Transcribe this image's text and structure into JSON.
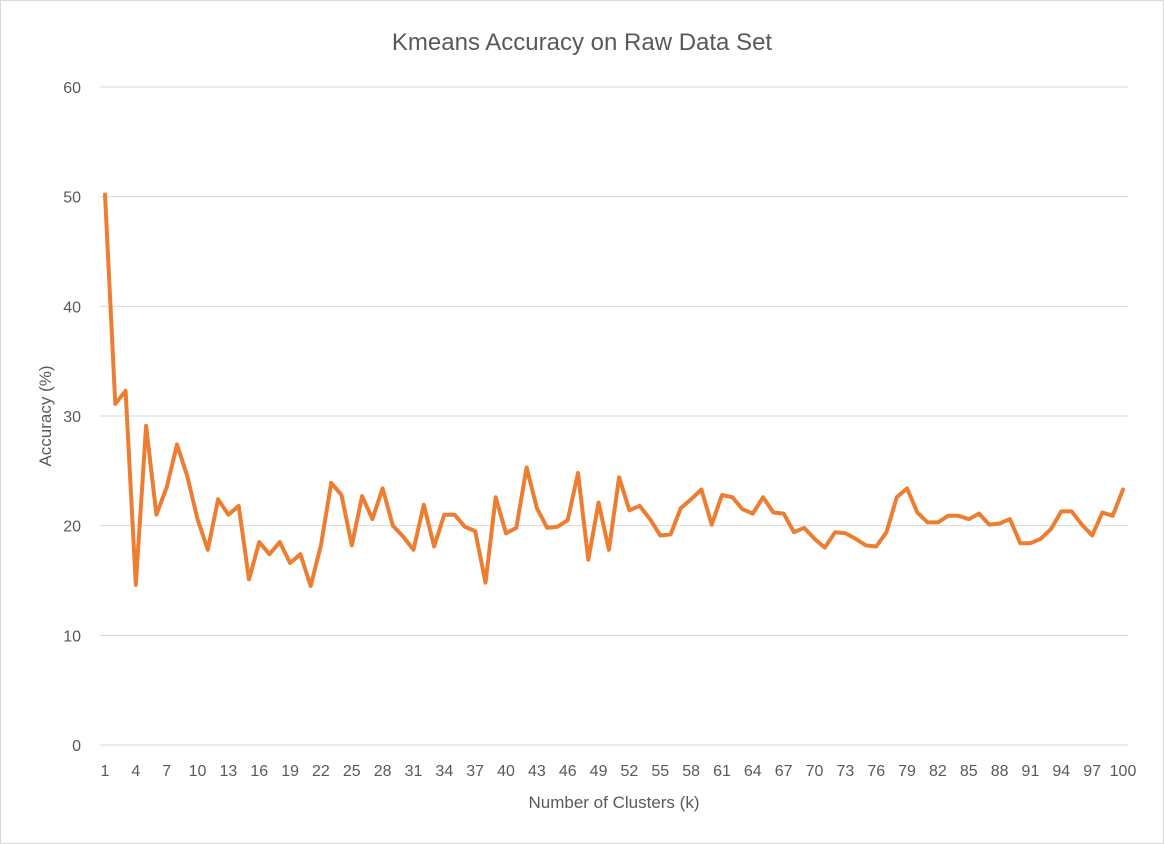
{
  "chart_data": {
    "type": "line",
    "title": "Kmeans Accuracy on Raw Data Set",
    "xlabel": "Number of Clusters (k)",
    "ylabel": "Accuracy (%)",
    "ylim": [
      0,
      60
    ],
    "yticks": [
      0,
      10,
      20,
      30,
      40,
      50,
      60
    ],
    "xticks": [
      1,
      4,
      7,
      10,
      13,
      16,
      19,
      22,
      25,
      28,
      31,
      34,
      37,
      40,
      43,
      46,
      49,
      52,
      55,
      58,
      61,
      64,
      67,
      70,
      73,
      76,
      79,
      82,
      85,
      88,
      91,
      94,
      97,
      100
    ],
    "grid": true,
    "legend": "none",
    "color": "#ed7d31",
    "x": [
      1,
      2,
      3,
      4,
      5,
      6,
      7,
      8,
      9,
      10,
      11,
      12,
      13,
      14,
      15,
      16,
      17,
      18,
      19,
      20,
      21,
      22,
      23,
      24,
      25,
      26,
      27,
      28,
      29,
      30,
      31,
      32,
      33,
      34,
      35,
      36,
      37,
      38,
      39,
      40,
      41,
      42,
      43,
      44,
      45,
      46,
      47,
      48,
      49,
      50,
      51,
      52,
      53,
      54,
      55,
      56,
      57,
      58,
      59,
      60,
      61,
      62,
      63,
      64,
      65,
      66,
      67,
      68,
      69,
      70,
      71,
      72,
      73,
      74,
      75,
      76,
      77,
      78,
      79,
      80,
      81,
      82,
      83,
      84,
      85,
      86,
      87,
      88,
      89,
      90,
      91,
      92,
      93,
      94,
      95,
      96,
      97,
      98,
      99,
      100
    ],
    "values": [
      50.2,
      31.1,
      32.3,
      14.6,
      29.1,
      21.0,
      23.5,
      27.4,
      24.5,
      20.6,
      17.8,
      22.4,
      21.0,
      21.8,
      15.1,
      18.5,
      17.4,
      18.5,
      16.6,
      17.4,
      14.5,
      18.2,
      23.9,
      22.8,
      18.2,
      22.7,
      20.6,
      23.4,
      20.0,
      19.0,
      17.8,
      21.9,
      18.1,
      21.0,
      21.0,
      19.9,
      19.5,
      14.8,
      22.6,
      19.3,
      19.8,
      25.3,
      21.6,
      19.8,
      19.9,
      20.5,
      24.8,
      16.9,
      22.1,
      17.8,
      24.4,
      21.4,
      21.8,
      20.6,
      19.1,
      19.2,
      21.6,
      22.4,
      23.3,
      20.1,
      22.8,
      22.6,
      21.5,
      21.1,
      22.6,
      21.2,
      21.1,
      19.4,
      19.8,
      18.8,
      18.0,
      19.4,
      19.3,
      18.8,
      18.2,
      18.1,
      19.4,
      22.6,
      23.4,
      21.2,
      20.3,
      20.3,
      20.9,
      20.9,
      20.6,
      21.1,
      20.1,
      20.2,
      20.6,
      18.4,
      18.4,
      18.8,
      19.7,
      21.3,
      21.3,
      20.1,
      19.1,
      21.2,
      20.9,
      23.3
    ]
  }
}
